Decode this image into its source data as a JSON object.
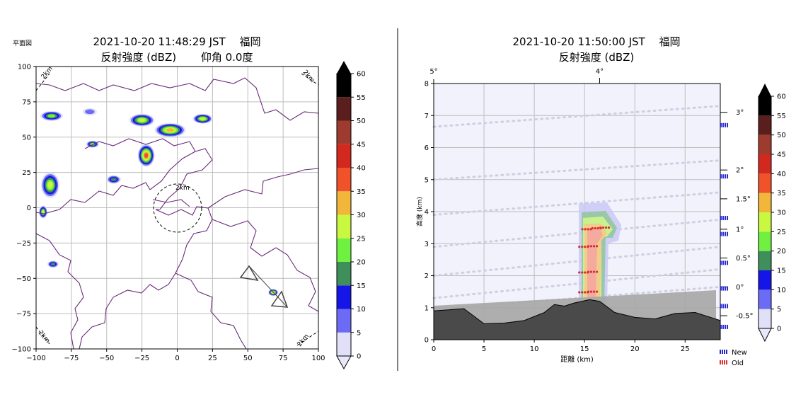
{
  "left": {
    "corner_label": "平面図",
    "title_line1": "2021-10-20 11:48:29 JST　 福岡",
    "title_line2": "反射強度 (dBZ)　　 仰角 0.0度",
    "xlim": [
      -100,
      100
    ],
    "ylim": [
      -100,
      100
    ],
    "x_ticks": [
      "−100",
      "−75",
      "−50",
      "−25",
      "0",
      "25",
      "50",
      "75",
      "100"
    ],
    "y_ticks": [
      "−100",
      "−75",
      "−50",
      "−25",
      "0",
      "25",
      "50",
      "75",
      "100"
    ],
    "range_ring_labels": [
      "2km",
      "2km",
      "2km",
      "2km",
      "2km"
    ],
    "grid": true
  },
  "right": {
    "title_line1": "2021-10-20 11:50:00 JST　 福岡",
    "title_line2": "反射強度 (dBZ)",
    "xlabel": "距離 (km)",
    "ylabel": "高度 (km)",
    "xlim": [
      0,
      28.5
    ],
    "ylim": [
      0,
      8
    ],
    "x_ticks": [
      "0",
      "5",
      "10",
      "15",
      "20",
      "25"
    ],
    "y_ticks": [
      "0",
      "1",
      "2",
      "3",
      "4",
      "5",
      "6",
      "7",
      "8"
    ],
    "top_ticks": [
      "5°",
      "4°"
    ],
    "elevation_labels": [
      "3°",
      "2°",
      "1.5°",
      "1°",
      "0.5°",
      "0°",
      "-0.5°"
    ],
    "legend": [
      "New",
      "Old"
    ],
    "grid": true
  },
  "colorbar": {
    "label_values": [
      "0",
      "5",
      "10",
      "15",
      "20",
      "25",
      "30",
      "35",
      "40",
      "45",
      "50",
      "55",
      "60"
    ],
    "colors": [
      "#e0e0f8",
      "#6b6bf5",
      "#1515e8",
      "#3e8f5a",
      "#70f040",
      "#c8f840",
      "#f2b73a",
      "#f0522a",
      "#d3281e",
      "#9e3b2f",
      "#5a1f1d",
      "#000000"
    ]
  },
  "chart_data": [
    {
      "type": "heatmap",
      "title": "2021-10-20 11:48:29 JST 福岡 / 反射強度 (dBZ) 仰角 0.0度",
      "xlim": [
        -100,
        100
      ],
      "ylim": [
        -100,
        100
      ],
      "value_range_dbz": [
        0,
        60
      ],
      "echo_regions": [
        {
          "x": -89,
          "y": 65,
          "max_dbz": 25
        },
        {
          "x": -62,
          "y": 68,
          "max_dbz": 10
        },
        {
          "x": -25,
          "y": 62,
          "max_dbz": 30
        },
        {
          "x": -5,
          "y": 55,
          "max_dbz": 35
        },
        {
          "x": 18,
          "y": 63,
          "max_dbz": 30
        },
        {
          "x": -60,
          "y": 45,
          "max_dbz": 25
        },
        {
          "x": -22,
          "y": 37,
          "max_dbz": 40
        },
        {
          "x": -90,
          "y": 16,
          "max_dbz": 30
        },
        {
          "x": -45,
          "y": 20,
          "max_dbz": 20
        },
        {
          "x": -95,
          "y": -3,
          "max_dbz": 30
        },
        {
          "x": -88,
          "y": -40,
          "max_dbz": 20
        },
        {
          "x": 68,
          "y": -60,
          "max_dbz": 35
        }
      ]
    },
    {
      "type": "heatmap",
      "title": "2021-10-20 11:50:00 JST 福岡 / 反射強度 (dBZ)",
      "xlabel": "距離 (km)",
      "ylabel": "高度 (km)",
      "xlim": [
        0,
        28.5
      ],
      "ylim": [
        0,
        8
      ],
      "echo_core": {
        "x_range": [
          14.8,
          17.4
        ],
        "top_km": 4.4,
        "max_dbz": 40
      },
      "terrain_profile": {
        "x": [
          0,
          3,
          5,
          7,
          9,
          11,
          12,
          13,
          14,
          15.5,
          16.5,
          18,
          20,
          22,
          24,
          26,
          28.5
        ],
        "y": [
          0.9,
          0.97,
          0.5,
          0.52,
          0.6,
          0.85,
          1.1,
          1.05,
          1.15,
          1.25,
          1.2,
          0.85,
          0.7,
          0.65,
          0.82,
          0.85,
          0.6
        ]
      },
      "old_scan_points": [
        {
          "x": 15.2,
          "y": 3.45
        },
        {
          "x": 16.2,
          "y": 3.48
        },
        {
          "x": 17.0,
          "y": 3.5
        },
        {
          "x": 14.9,
          "y": 2.9
        },
        {
          "x": 15.8,
          "y": 2.92
        },
        {
          "x": 14.9,
          "y": 2.1
        },
        {
          "x": 15.8,
          "y": 2.12
        },
        {
          "x": 14.9,
          "y": 1.48
        },
        {
          "x": 15.8,
          "y": 1.5
        }
      ]
    }
  ]
}
